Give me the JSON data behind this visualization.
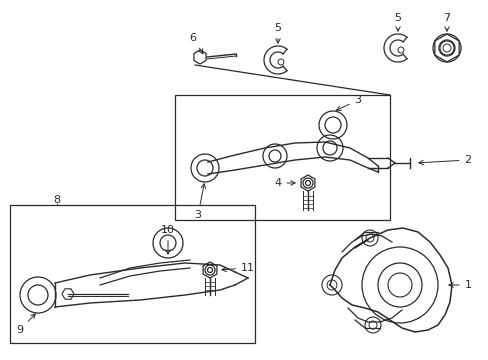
{
  "bg_color": "#ffffff",
  "line_color": "#2a2a2a",
  "figsize": [
    4.89,
    3.6
  ],
  "dpi": 100,
  "xlim": [
    0,
    489
  ],
  "ylim": [
    0,
    360
  ]
}
